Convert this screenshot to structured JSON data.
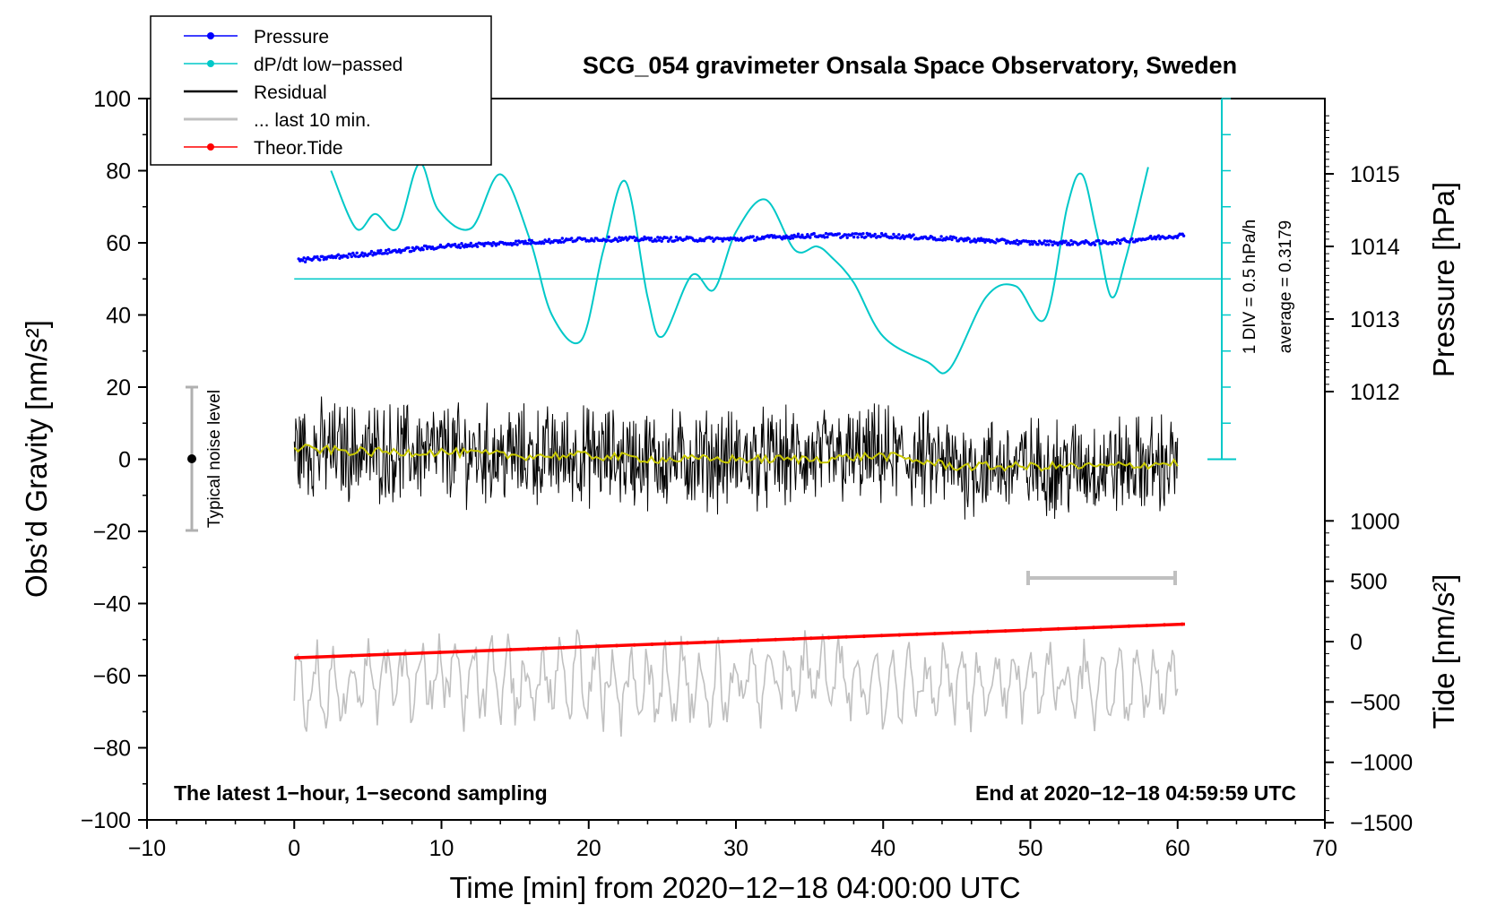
{
  "chart_data": {
    "type": "line",
    "title": "SCG_054 gravimeter Onsala Space Observatory, Sweden",
    "xlabel": "Time [min] from 2020−12−18 04:00:00 UTC",
    "ylabel_left": "Obs’d Gravity [nm/s²]",
    "ylabel_pressure": "Pressure [hPa]",
    "ylabel_tide": "Tide [nm/s²]",
    "xlim": [
      -10,
      70
    ],
    "ylim": [
      -100,
      100
    ],
    "x_ticks": [
      "−10",
      "0",
      "10",
      "20",
      "30",
      "40",
      "50",
      "60",
      "70"
    ],
    "y_ticks": [
      "100",
      "80",
      "60",
      "40",
      "20",
      "0",
      "−20",
      "−40",
      "−60",
      "−80",
      "−100"
    ],
    "pressure_ticks": [
      "1015",
      "1014",
      "1013",
      "1012"
    ],
    "tide_ticks": [
      "1000",
      "500",
      "0",
      "−500",
      "−1000",
      "−1500"
    ],
    "annotation_left": "The latest 1−hour, 1−second sampling",
    "annotation_right": "End at 2020−12−18 04:59:59 UTC",
    "noise_label": "Typical noise level",
    "noise_range": [
      -20,
      20
    ],
    "div_label": "1 DIV = 0.5 hPa/h",
    "average_label": "average = 0.3179",
    "legend": [
      {
        "label": "Pressure",
        "color": "#0000ff",
        "marker": true
      },
      {
        "label": "dP/dt low−passed",
        "color": "#00c8c8",
        "marker": true
      },
      {
        "label": "Residual",
        "color": "#000000",
        "marker": false
      },
      {
        "label": "... last 10 min.",
        "color": "#c0c0c0",
        "marker": false
      },
      {
        "label": "Theor.Tide",
        "color": "#ff0000",
        "marker": true
      }
    ],
    "series": [
      {
        "name": "Pressure",
        "unit": "hPa",
        "x": [
          0,
          5,
          10,
          15,
          20,
          25,
          30,
          35,
          40,
          45,
          50,
          55,
          60
        ],
        "values": [
          1013.8,
          1013.9,
          1014.0,
          1014.05,
          1014.1,
          1014.1,
          1014.1,
          1014.15,
          1014.15,
          1014.1,
          1014.05,
          1014.05,
          1014.15
        ]
      },
      {
        "name": "dP/dt low−passed",
        "x": [
          2.5,
          4.2,
          5.5,
          7,
          8.5,
          9.8,
          12,
          14,
          16,
          17.5,
          19.5,
          21,
          22.5,
          24,
          25,
          27,
          28.5,
          30,
          32,
          34,
          35.5,
          36.5,
          38,
          40,
          43,
          44.5,
          47,
          49,
          51,
          52.5,
          53.5,
          54.5,
          55.5,
          56.5,
          58
        ],
        "values": [
          80,
          64,
          68,
          64,
          82,
          69,
          64,
          79,
          61,
          40,
          33,
          58,
          77,
          45,
          34,
          51,
          47,
          63,
          72,
          58,
          59,
          56,
          49,
          34,
          27,
          25,
          45,
          48,
          39,
          70,
          79,
          63,
          45,
          56,
          81
        ]
      },
      {
        "name": "Residual",
        "x": [
          0,
          5,
          10,
          15,
          20,
          25,
          30,
          35,
          40,
          45,
          50,
          55,
          60
        ],
        "values": [
          3,
          2,
          2,
          1,
          1,
          0,
          0,
          0,
          1,
          -2,
          -2,
          -2,
          -1
        ]
      },
      {
        "name": "... last 10 min.",
        "x": [
          0,
          5,
          10,
          15,
          20,
          25,
          30,
          35,
          40,
          45,
          50,
          55,
          60
        ],
        "values": [
          -65,
          -62,
          -60,
          -63,
          -61,
          -64,
          -62,
          -60,
          -63,
          -62,
          -61,
          -63,
          -62
        ]
      },
      {
        "name": "Theor.Tide",
        "unit": "nm/s²",
        "x": [
          0,
          60.5
        ],
        "values": [
          -135,
          145
        ]
      }
    ]
  }
}
